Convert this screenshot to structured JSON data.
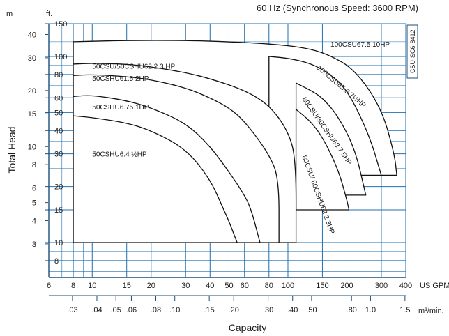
{
  "chart_data": {
    "type": "area",
    "title": "60 Hz (Synchronous Speed: 3600 RPM)",
    "xlabel": "Capacity",
    "ylabel": "Total Head",
    "code": "CSU-SC6-8412",
    "x_scale": "log",
    "y_scale": "log",
    "xlim_gpm": [
      6,
      400
    ],
    "ylim_ft": [
      6.5,
      150
    ],
    "gpm_unit": "US GPM",
    "m3_unit": "m³/min.",
    "ft_unit": "ft.",
    "m_unit": "m",
    "gpm_ticks": [
      "6",
      "8",
      "10",
      "15",
      "20",
      "30",
      "40",
      "50",
      "60",
      "80",
      "100",
      "150",
      "200",
      "300",
      "400"
    ],
    "m3_ticks": [
      ".03",
      ".04",
      ".05",
      ".06",
      ".08",
      ".10",
      ".15",
      ".20",
      ".30",
      ".40",
      ".50",
      ".80",
      "1.0",
      "1.5"
    ],
    "ft_ticks": [
      "8",
      "10",
      "15",
      "20",
      "30",
      "40",
      "50",
      "60",
      "80",
      "100",
      "150"
    ],
    "m_ticks": [
      "3",
      "4",
      "5",
      "6",
      "8",
      "10",
      "15",
      "20",
      "30",
      "40"
    ],
    "series": [
      {
        "name": "50CSHU6.4 ½HP",
        "x_gpm": [
          8,
          10,
          15,
          20,
          30,
          40,
          47,
          50,
          55,
          55
        ],
        "y_ft": [
          48,
          47,
          44,
          40,
          32,
          22,
          15,
          13,
          10,
          10
        ]
      },
      {
        "name": "50CSHU6.75 1HP",
        "x_gpm": [
          8,
          10,
          15,
          20,
          30,
          40,
          50,
          60,
          65,
          72,
          72
        ],
        "y_ft": [
          61,
          62,
          58,
          53,
          44,
          33,
          24,
          18,
          15,
          10,
          10
        ]
      },
      {
        "name": "50CSHU61.5 2HP",
        "x_gpm": [
          8,
          10,
          15,
          20,
          30,
          40,
          50,
          60,
          80,
          90,
          90
        ],
        "y_ft": [
          79,
          80,
          78,
          75,
          68,
          60,
          53,
          45,
          30,
          22,
          10
        ]
      },
      {
        "name": "50CSU/50CSHU62.2 3 HP",
        "x_gpm": [
          8,
          10,
          15,
          20,
          30,
          40,
          60,
          80,
          100,
          110,
          110
        ],
        "y_ft": [
          91,
          92,
          91,
          88,
          82,
          76,
          66,
          55,
          40,
          28,
          10
        ]
      },
      {
        "name": "80CSU/ 80CSHU62.2 3HP",
        "x_gpm": [
          110,
          130,
          150,
          180,
          200,
          205,
          205
        ],
        "y_ft": [
          52,
          45,
          37,
          25,
          17,
          15,
          15
        ]
      },
      {
        "name": "80CSU/80CSHU63.7 5HP",
        "x_gpm": [
          110,
          130,
          150,
          180,
          220,
          250,
          250
        ],
        "y_ft": [
          72,
          66,
          60,
          48,
          32,
          18,
          18
        ]
      },
      {
        "name": "100CSU65.5 7½HP",
        "x_gpm": [
          80,
          100,
          130,
          160,
          200,
          260,
          300,
          300
        ],
        "y_ft": [
          100,
          98,
          92,
          82,
          67,
          38,
          23,
          23
        ]
      },
      {
        "name": "100CSU67.5 10HP",
        "x_gpm": [
          8,
          15,
          30,
          50,
          80,
          120,
          160,
          220,
          300,
          350,
          360
        ],
        "y_ft": [
          120,
          122,
          122,
          120,
          117,
          112,
          103,
          85,
          53,
          30,
          23
        ]
      }
    ],
    "labels": [
      {
        "text": "50CSHU6.4 ½HP",
        "x_gpm": 10,
        "y_ft": 29
      },
      {
        "text": "50CSHU6.75 1HP",
        "x_gpm": 10,
        "y_ft": 52
      },
      {
        "text": "50CSHU61.5 2HP",
        "x_gpm": 10,
        "y_ft": 74
      },
      {
        "text": "50CSU/50CSHU62.2 3 HP",
        "x_gpm": 10,
        "y_ft": 86
      },
      {
        "text": "100CSU67.5 10HP",
        "x_gpm": 165,
        "y_ft": 113
      },
      {
        "text": "100CSU65.5 7½HP",
        "x_gpm": 140,
        "y_ft": 86
      },
      {
        "text": "80CSU/80CSHU63.7 5HP",
        "x_gpm": 118,
        "y_ft": 59
      },
      {
        "text": "80CSU/ 80CSHU62.2 3HP",
        "x_gpm": 118,
        "y_ft": 29
      }
    ]
  }
}
